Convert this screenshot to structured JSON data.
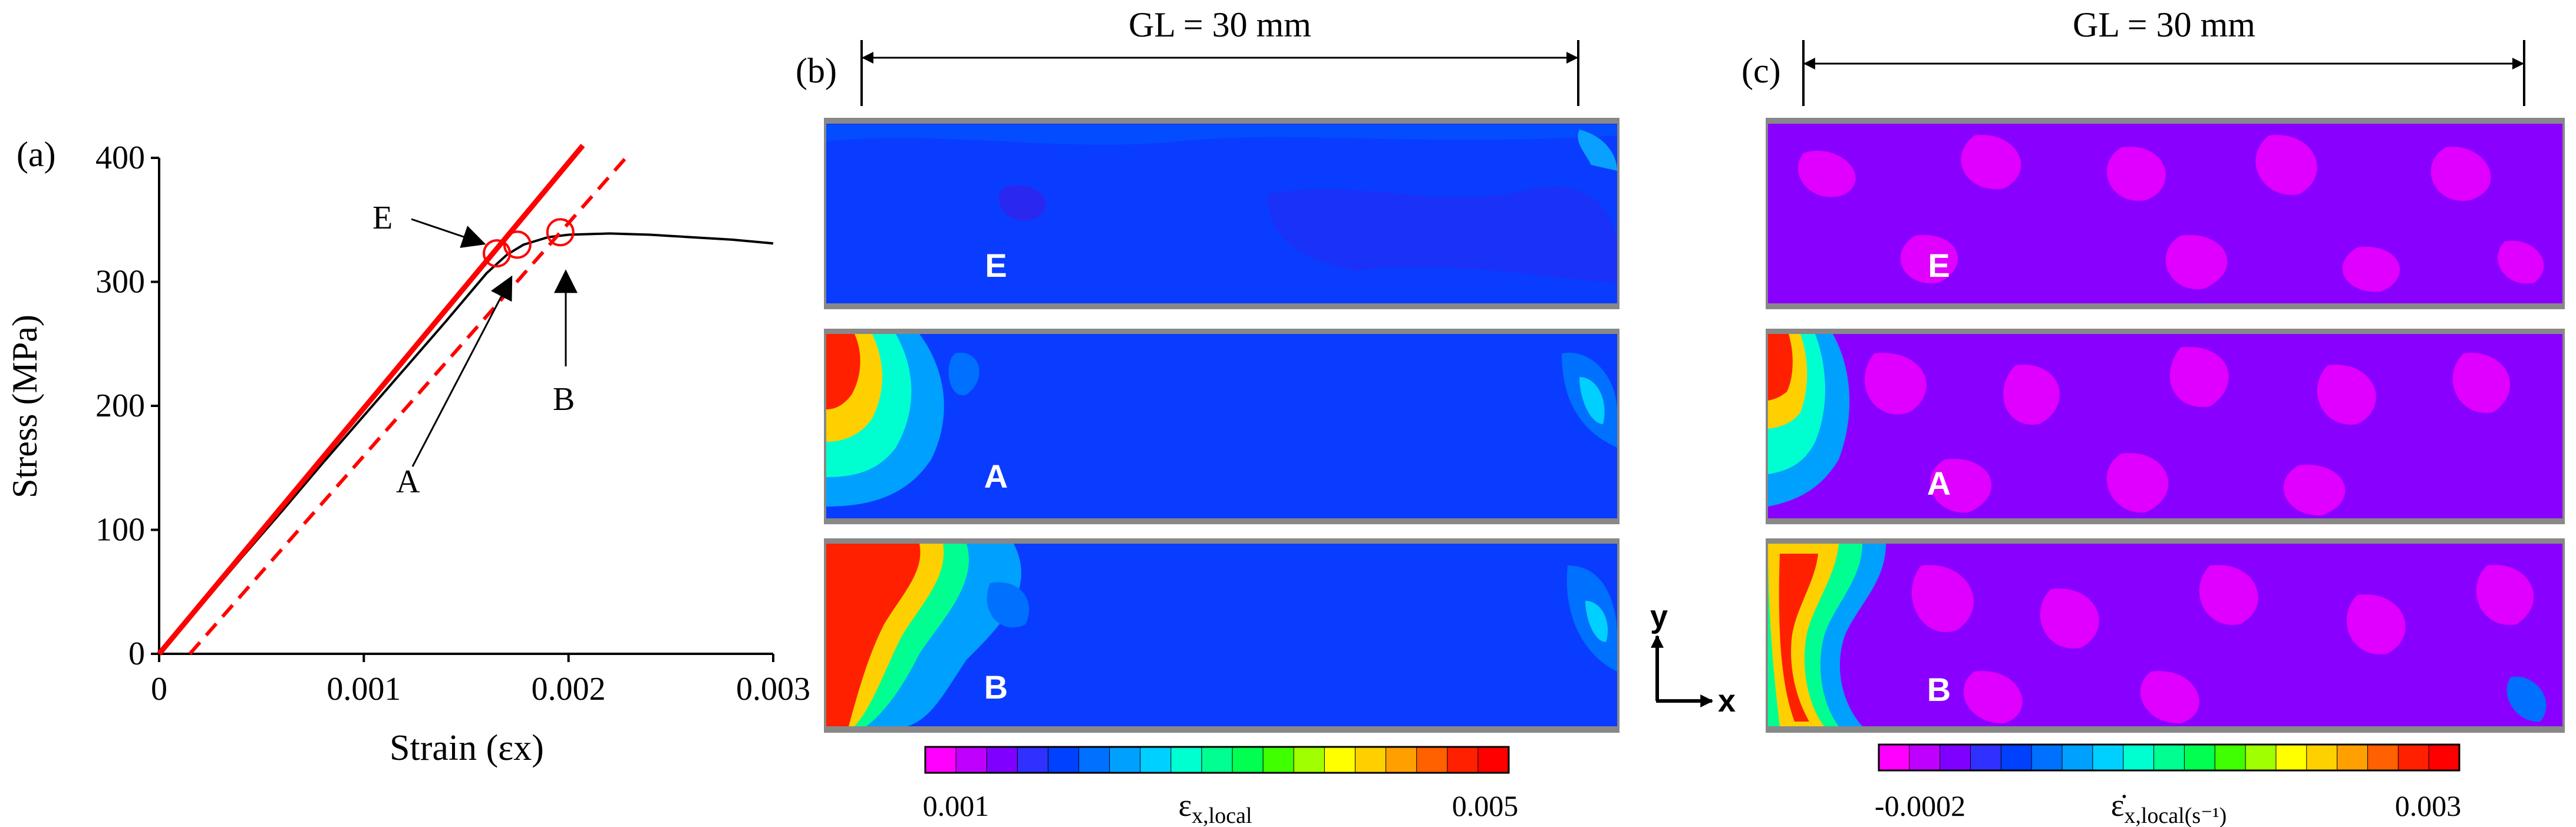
{
  "panels": {
    "a": {
      "tag": "(a)"
    },
    "b": {
      "tag": "(b)",
      "gauge": "GL = 30 mm",
      "colorbar": {
        "min": "0.001",
        "max": "0.005",
        "symbol": "ε",
        "subscript": "x,local",
        "superscript": ""
      }
    },
    "c": {
      "tag": "(c)",
      "gauge": "GL = 30 mm",
      "colorbar": {
        "min": "-0.0002",
        "max": "0.003",
        "symbol": "ε̇",
        "subscript": "x,local",
        "superscript": "(s⁻¹)"
      }
    }
  },
  "axes_glyph": {
    "y": "y",
    "x": "x"
  },
  "strip_labels": [
    "E",
    "A",
    "B"
  ],
  "colorbar_colors": [
    "#ff00ff",
    "#c000ff",
    "#8000ff",
    "#3030ff",
    "#0040ff",
    "#0070ff",
    "#00a0ff",
    "#00d0ff",
    "#00ffd0",
    "#00ff90",
    "#00ff50",
    "#40ff00",
    "#a0ff00",
    "#ffff00",
    "#ffd000",
    "#ffa000",
    "#ff6000",
    "#ff2000",
    "#ff0000"
  ],
  "chart_data": {
    "type": "line",
    "xlabel": "Strain (εx)",
    "ylabel": "Stress (MPa)",
    "xlim": [
      0,
      0.003
    ],
    "ylim": [
      0,
      400
    ],
    "xticks": [
      "0",
      "0.001",
      "0.002",
      "0.003"
    ],
    "yticks": [
      "0",
      "100",
      "200",
      "300",
      "400"
    ],
    "series": [
      {
        "x": [
          0,
          0.0002,
          0.0004,
          0.0006,
          0.0008,
          0.001,
          0.0012,
          0.0014,
          0.0016,
          0.0017,
          0.00178,
          0.0019,
          0.002,
          0.0022,
          0.0024,
          0.0026,
          0.0028,
          0.003
        ],
        "y": [
          0,
          38,
          77,
          115,
          154,
          192,
          230,
          268,
          307,
          322,
          330,
          336,
          338,
          339,
          338,
          336,
          334,
          331
        ]
      }
    ],
    "elastic_line": {
      "x": [
        0,
        0.00207
      ],
      "y": [
        0,
        410
      ]
    },
    "offset_line": {
      "x": [
        0.00015,
        0.00228
      ],
      "y": [
        0,
        400
      ]
    },
    "points": [
      {
        "label": "E",
        "x": 0.00165,
        "y": 323
      },
      {
        "label": "A",
        "x": 0.00175,
        "y": 330
      },
      {
        "label": "B",
        "x": 0.00196,
        "y": 340
      }
    ]
  }
}
